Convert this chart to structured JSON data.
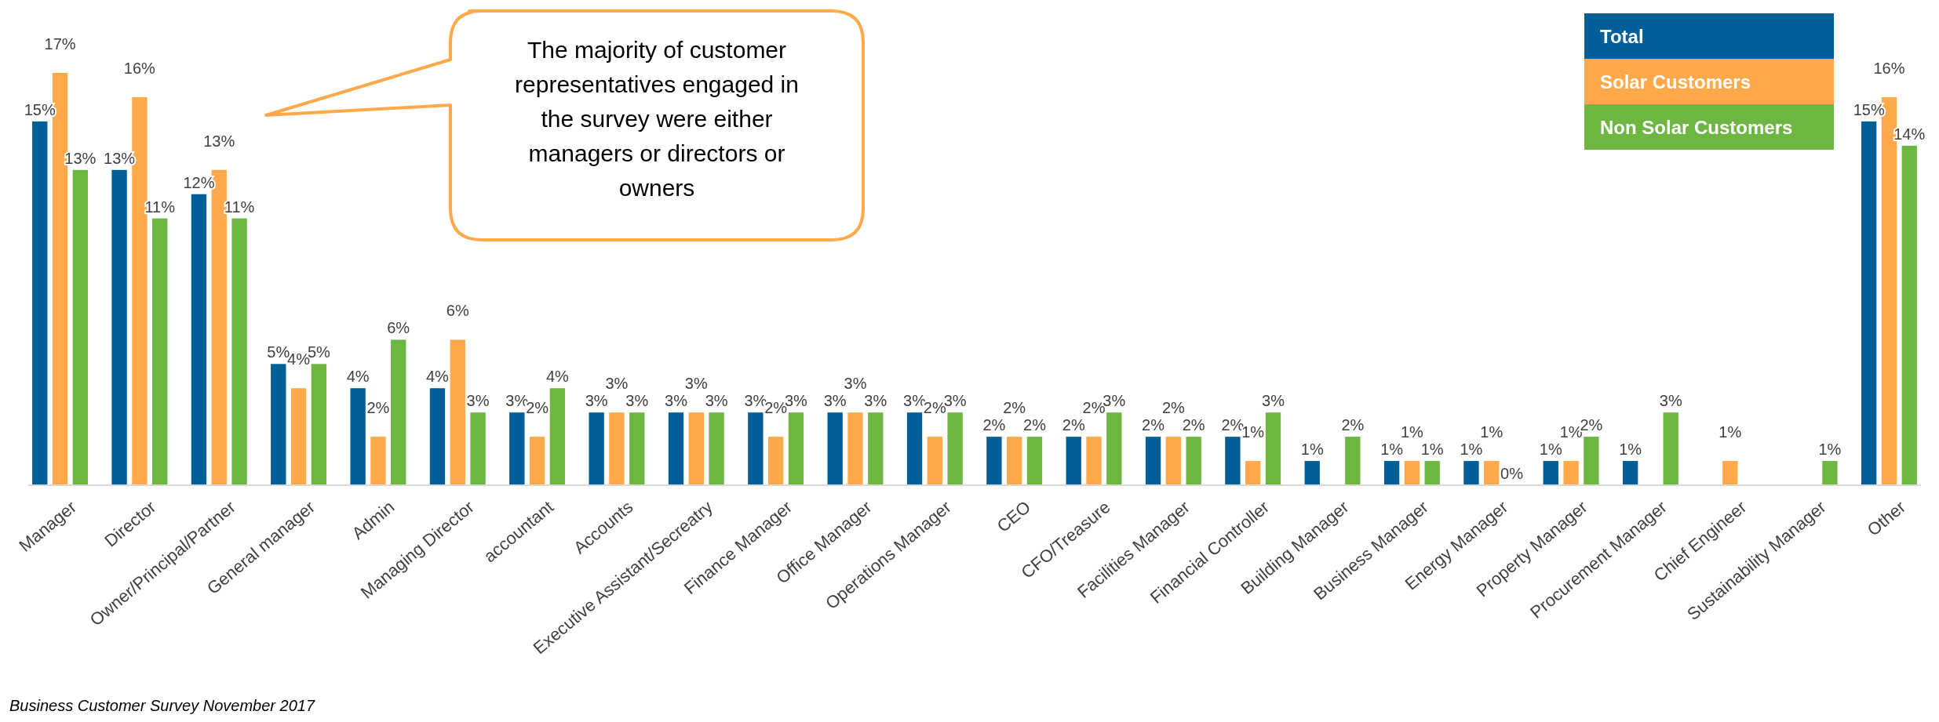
{
  "chart_data": {
    "type": "bar",
    "categories": [
      "Manager",
      "Director",
      "Owner/Principal/Partner",
      "General manager",
      "Admin",
      "Managing Director",
      "accountant",
      "Accounts",
      "Executive Assistant/Secreatry",
      "Finance Manager",
      "Office Manager",
      "Operations Manager",
      "CEO",
      "CFO/Treasure",
      "Facilities Manager",
      "Financial Controller",
      "Building Manager",
      "Business Manager",
      "Energy Manager",
      "Property Manager",
      "Procurement Manager",
      "Chief Engineer",
      "Sustainability Manager",
      "Other"
    ],
    "series": [
      {
        "name": "Total",
        "color": "#005f96",
        "values": [
          15,
          13,
          12,
          5,
          4,
          4,
          3,
          3,
          3,
          3,
          3,
          3,
          2,
          2,
          2,
          2,
          1,
          1,
          1,
          1,
          1,
          null,
          null,
          15
        ],
        "value_labels": [
          "15%",
          "13%",
          "12%",
          "5%",
          "4%",
          "4%",
          "3%",
          "3%",
          "3%",
          "3%",
          "3%",
          "3%",
          "2%",
          "2%",
          "2%",
          "2%",
          "1%",
          "1%",
          "1%",
          "1%",
          "1%",
          null,
          null,
          "15%"
        ]
      },
      {
        "name": "Solar Customers",
        "color": "#ffa94a",
        "values": [
          17,
          16,
          13,
          4,
          2,
          6,
          2,
          3,
          3,
          2,
          3,
          2,
          2,
          2,
          2,
          1,
          null,
          1,
          1,
          1,
          null,
          1,
          null,
          16
        ],
        "value_labels": [
          "17%",
          "16%",
          "13%",
          "4%",
          "2%",
          "6%",
          "2%",
          "3%",
          "3%",
          "2%",
          "3%",
          "2%",
          "2%",
          "2%",
          "2%",
          "1%",
          null,
          "1%",
          "1%",
          "1%",
          null,
          "1%",
          null,
          "16%"
        ]
      },
      {
        "name": "Non Solar Customers",
        "color": "#6db642",
        "values": [
          13,
          11,
          11,
          5,
          6,
          3,
          4,
          3,
          3,
          3,
          3,
          3,
          2,
          3,
          2,
          3,
          2,
          1,
          0,
          2,
          3,
          null,
          1,
          14
        ],
        "value_labels": [
          "13%",
          "11%",
          "11%",
          "5%",
          "6%",
          "3%",
          "4%",
          "3%",
          "3%",
          "3%",
          "3%",
          "3%",
          "2%",
          "3%",
          "2%",
          "3%",
          "2%",
          "1%",
          "0%",
          "2%",
          "3%",
          null,
          "1%",
          "14%"
        ]
      }
    ],
    "legend": "top right",
    "annotations": [
      "The majority of customer representatives engaged in the survey were either managers or directors or owners",
      "Business Customer Survey November 2017"
    ]
  }
}
